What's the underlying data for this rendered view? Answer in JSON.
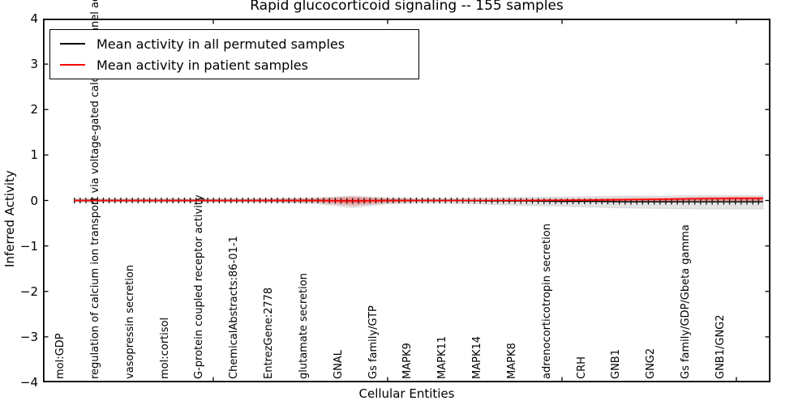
{
  "window": {
    "title": "Rapid glucocorticoid signaling -- 155 samples"
  },
  "legend": {
    "entries": [
      {
        "label": "Mean activity in all permuted samples",
        "color": "#000000"
      },
      {
        "label": "Mean activity in patient samples",
        "color": "#ff0000"
      }
    ]
  },
  "colors": {
    "permuted_line": "#000000",
    "patient_line": "#ff0000",
    "permuted_band": "rgba(0,0,0,0.11)",
    "patient_band": "rgba(255,0,0,0.20)",
    "patient_band_inner": "rgba(255,0,0,0.28)",
    "axis": "#000000"
  },
  "chart_data": {
    "type": "line",
    "title": "Rapid glucocorticoid signaling -- 155 samples",
    "xlabel": "Cellular Entities",
    "ylabel": "Inferred Activity",
    "ylim": [
      -4,
      4
    ],
    "yticks": [
      4,
      3,
      2,
      1,
      0,
      -1,
      -2,
      -3,
      -4
    ],
    "grid": false,
    "legend_position": "upper left",
    "categories": [
      "mol:GDP",
      "regulation of calcium ion transport via voltage-gated calcium channel activity",
      "vasopressin secretion",
      "mol:cortisol",
      "G-protein coupled receptor activity",
      "ChemicalAbstracts:86-01-1",
      "EntrezGene:2778",
      "glutamate secretion",
      "GNAL",
      "Gs family/GTP",
      "MAPK9",
      "MAPK11",
      "MAPK14",
      "MAPK8",
      "adrenocorticotropin secretion",
      "CRH",
      "GNB1",
      "GNG2",
      "Gs family/GDP/Gbeta gamma",
      "GNB1/GNG2"
    ],
    "series": [
      {
        "name": "Mean activity in all permuted samples",
        "color": "#000000",
        "values": [
          0,
          0,
          0,
          0,
          0,
          0,
          0,
          0,
          -0.01,
          0,
          0,
          0,
          -0.01,
          -0.01,
          -0.02,
          -0.02,
          -0.03,
          -0.03,
          -0.03,
          -0.03
        ],
        "band_upper": [
          0.04,
          0.04,
          0.04,
          0.04,
          0.04,
          0.04,
          0.05,
          0.06,
          0.1,
          0.06,
          0.05,
          0.05,
          0.06,
          0.07,
          0.08,
          0.09,
          0.1,
          0.1,
          0.11,
          0.11
        ],
        "band_lower": [
          -0.04,
          -0.04,
          -0.04,
          -0.04,
          -0.04,
          -0.04,
          -0.05,
          -0.07,
          -0.16,
          -0.08,
          -0.06,
          -0.07,
          -0.09,
          -0.11,
          -0.13,
          -0.15,
          -0.17,
          -0.18,
          -0.19,
          -0.19
        ]
      },
      {
        "name": "Mean activity in patient samples",
        "color": "#ff0000",
        "values": [
          0,
          0,
          0,
          0,
          0,
          0,
          0,
          0,
          -0.01,
          0,
          0,
          0,
          0,
          0,
          0.005,
          0.01,
          0.02,
          0.03,
          0.04,
          0.05
        ],
        "band_upper": [
          0.03,
          0.03,
          0.03,
          0.03,
          0.03,
          0.03,
          0.04,
          0.05,
          0.09,
          0.05,
          0.03,
          0.03,
          0.03,
          0.04,
          0.04,
          0.05,
          0.06,
          0.06,
          0.08,
          0.08
        ],
        "band_lower": [
          -0.03,
          -0.03,
          -0.03,
          -0.03,
          -0.03,
          -0.03,
          -0.04,
          -0.05,
          -0.12,
          -0.06,
          -0.03,
          -0.03,
          -0.03,
          -0.03,
          -0.03,
          -0.02,
          -0.02,
          -0.02,
          -0.01,
          -0.01
        ]
      }
    ]
  }
}
